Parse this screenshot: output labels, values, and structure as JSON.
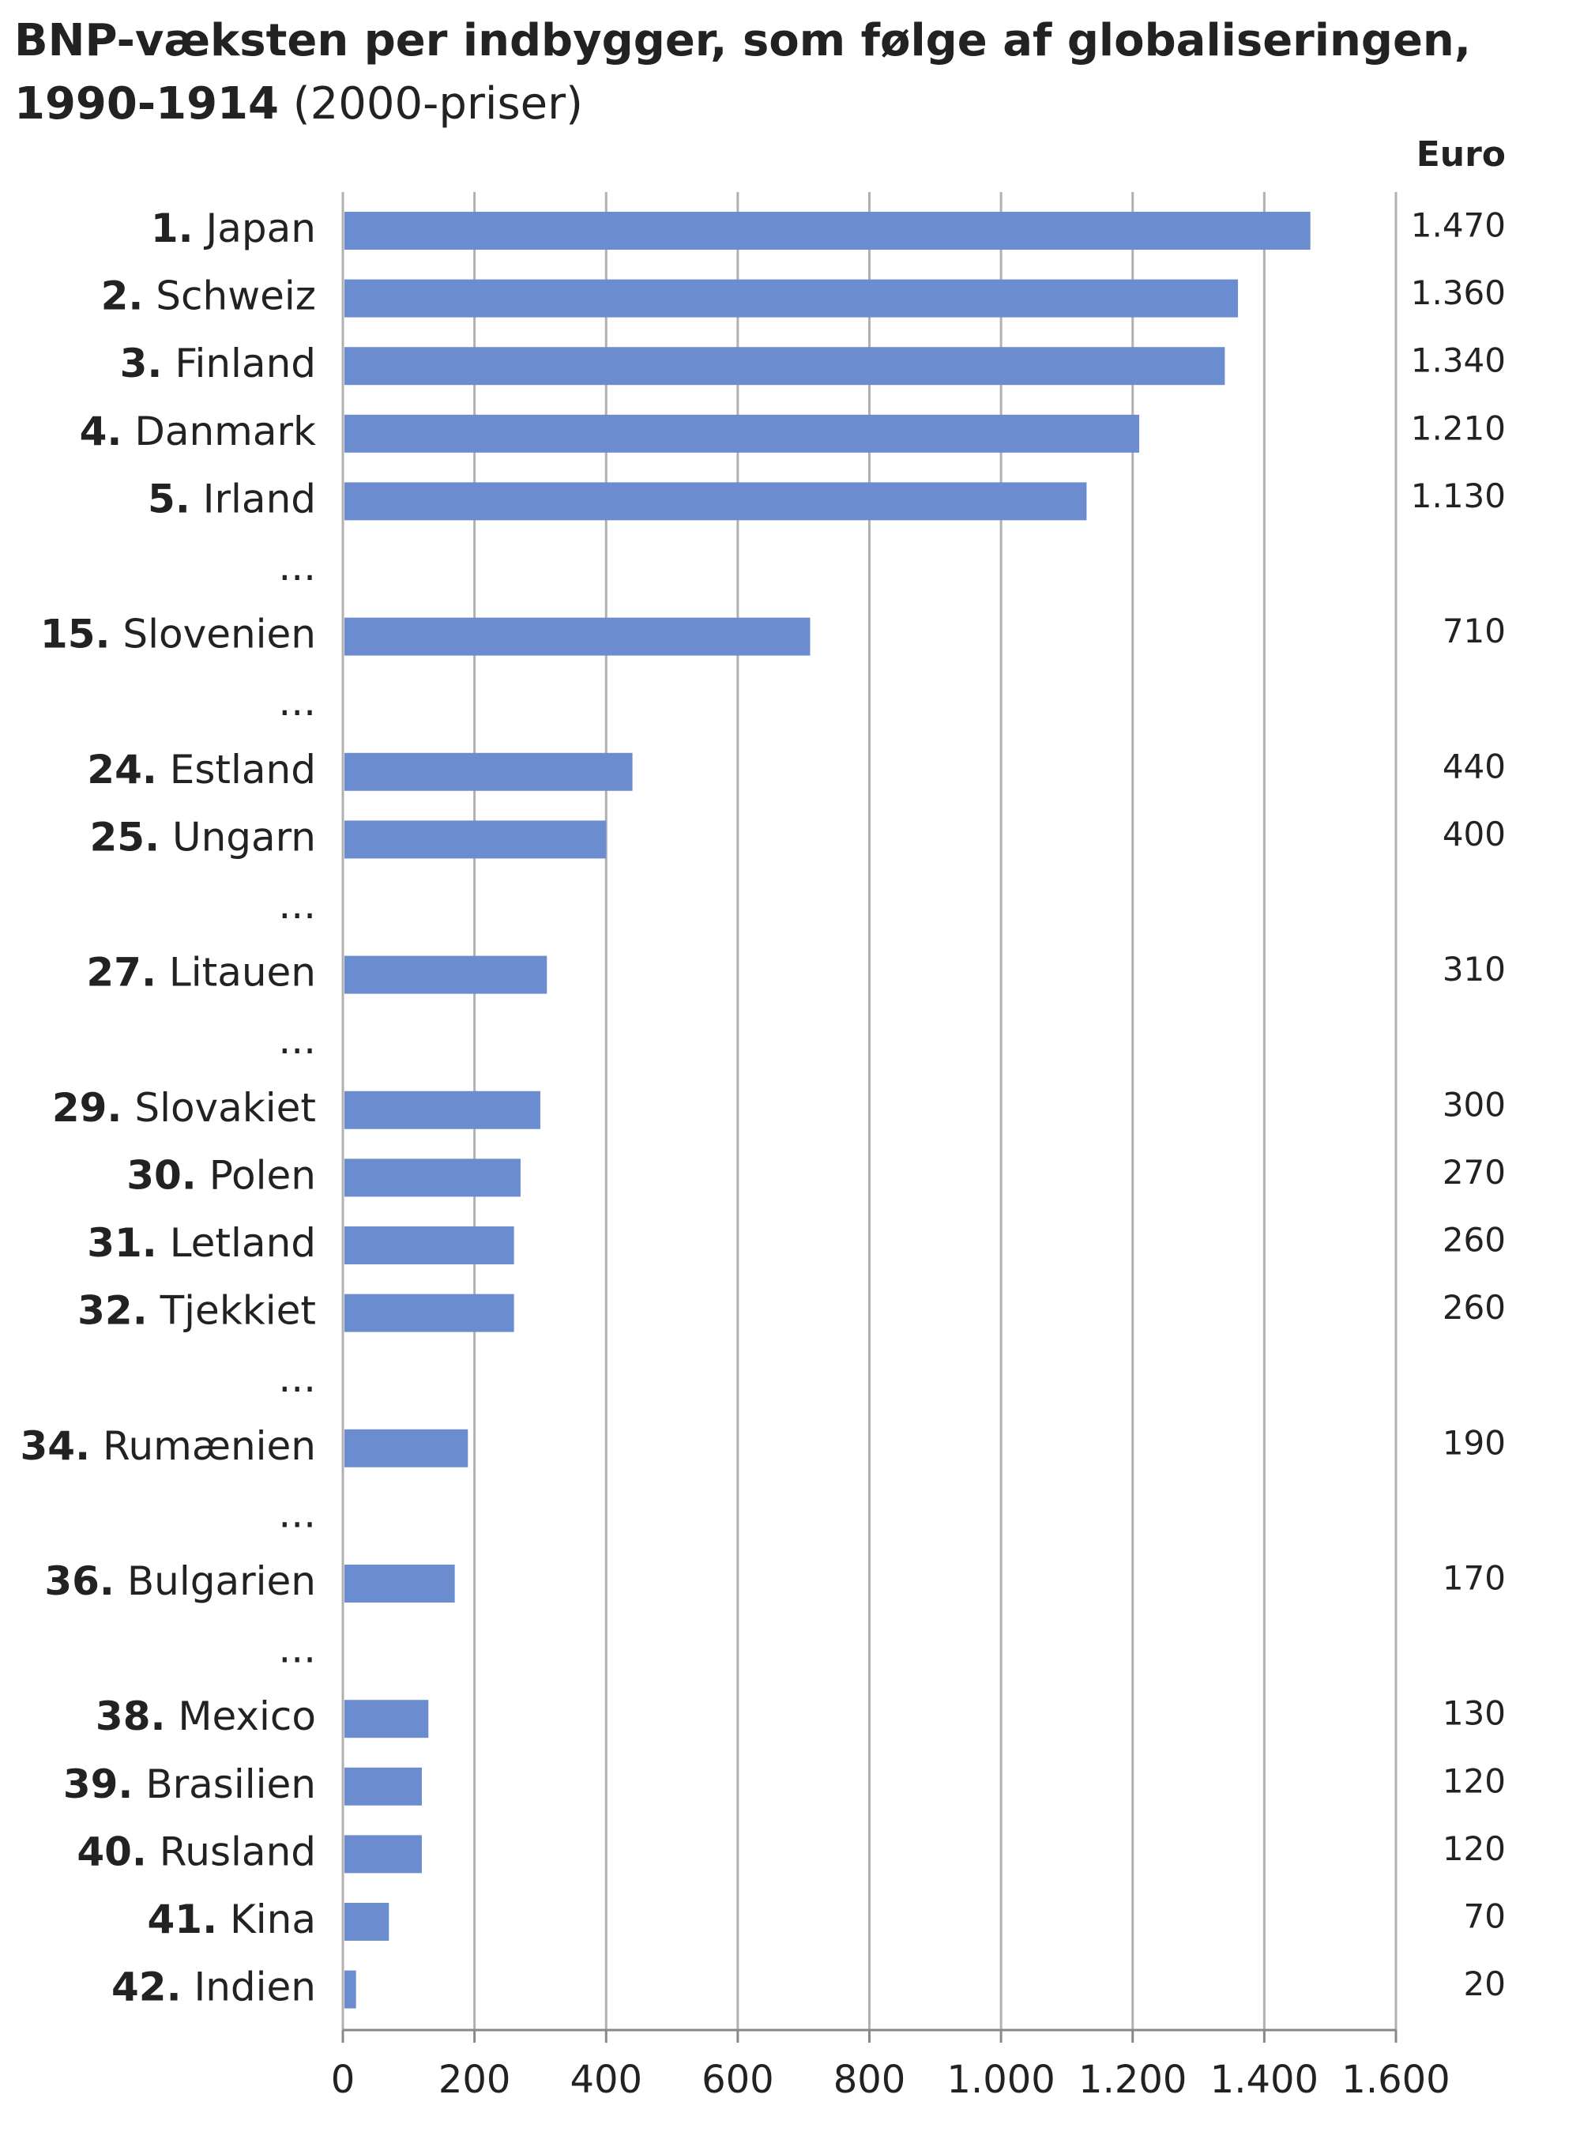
{
  "chart_data": {
    "type": "bar",
    "orientation": "horizontal",
    "title": [
      "BNP-væksten per indbygger, som følge af globaliseringen,",
      "1990-1914"
    ],
    "subtitle": "(2000-priser)",
    "unit": "Euro",
    "ranks": [
      "1.",
      "2.",
      "3.",
      "4.",
      "5.",
      null,
      "15.",
      null,
      "24.",
      "25.",
      null,
      "27.",
      null,
      "29.",
      "30.",
      "31.",
      "32.",
      null,
      "34.",
      null,
      "36.",
      null,
      "38.",
      "39.",
      "40.",
      "41.",
      "42."
    ],
    "categories": [
      "Japan",
      "Schweiz",
      "Finland",
      "Danmark",
      "Irland",
      "...",
      "Slovenien",
      "...",
      "Estland",
      "Ungarn",
      "...",
      "Litauen",
      "...",
      "Slovakiet",
      "Polen",
      "Letland",
      "Tjekkiet",
      "...",
      "Rumænien",
      "...",
      "Bulgarien",
      "...",
      "Mexico",
      "Brasilien",
      "Rusland",
      "Kina",
      "Indien"
    ],
    "values": [
      1470,
      1360,
      1340,
      1210,
      1130,
      null,
      710,
      null,
      440,
      400,
      null,
      310,
      null,
      300,
      270,
      260,
      260,
      null,
      190,
      null,
      170,
      null,
      130,
      120,
      120,
      70,
      20
    ],
    "value_labels": [
      "1.470",
      "1.360",
      "1.340",
      "1.210",
      "1.130",
      null,
      "710",
      null,
      "440",
      "400",
      null,
      "310",
      null,
      "300",
      "270",
      "260",
      "260",
      null,
      "190",
      null,
      "170",
      null,
      "130",
      "120",
      "120",
      "70",
      "20"
    ],
    "color": "#6b8dd0",
    "xlim": [
      0,
      1600
    ],
    "xticks": [
      0,
      200,
      400,
      600,
      800,
      {
        "value": 1000,
        "label": "1.000"
      },
      {
        "value": 1200,
        "label": "1.200"
      },
      {
        "value": 1400,
        "label": "1.400"
      },
      {
        "value": 1600,
        "label": "1.600"
      }
    ],
    "grid": true
  }
}
